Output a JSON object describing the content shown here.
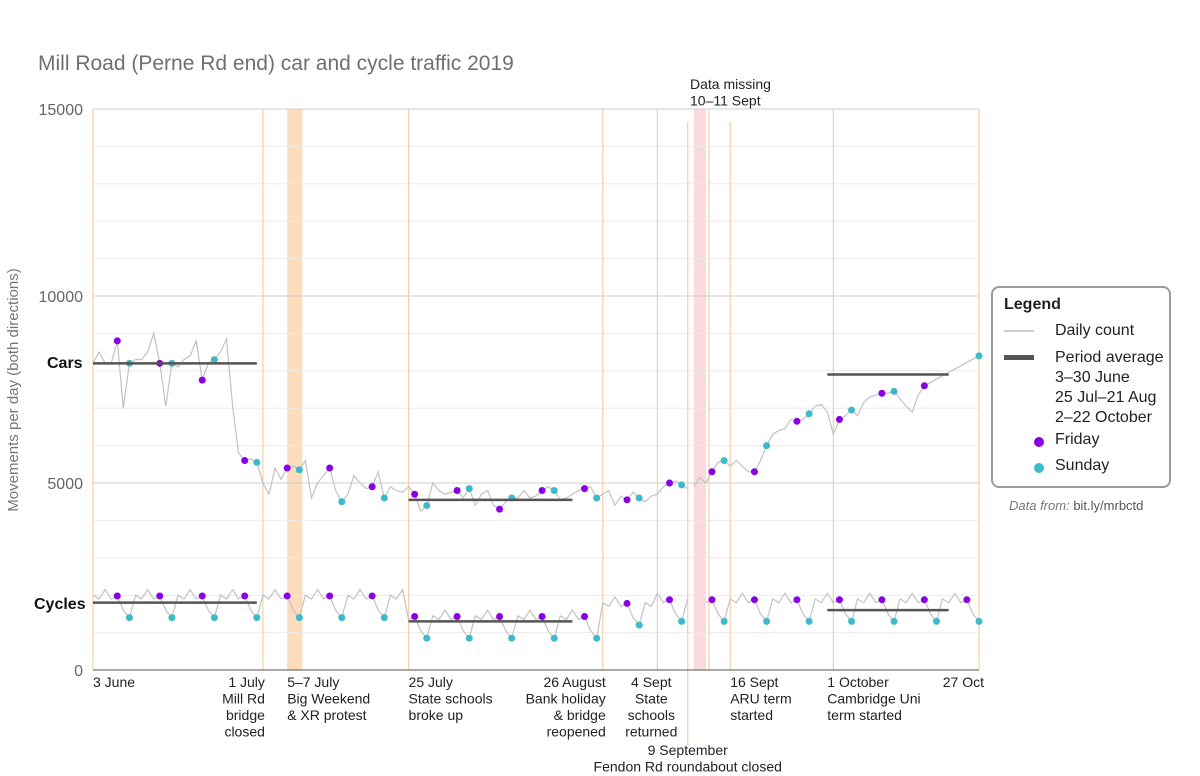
{
  "chart_data": {
    "type": "line",
    "title": "Mill Road (Perne Rd end) car and cycle traffic 2019",
    "ylabel": "Movements per day (both directions)",
    "ylim": [
      0,
      15000
    ],
    "y_ticks": [
      "0",
      "5000",
      "10000",
      "15000"
    ],
    "series_labels": [
      "Cars",
      "Cycles"
    ],
    "x_start": "3 June",
    "x_end": "27 Oct",
    "grid": true,
    "colors": {
      "daily": "#c2c2c2",
      "average": "#555555",
      "friday": "#8a00e6",
      "sunday": "#3dbac9",
      "event_line": "#f5cfa8",
      "big_weekend_band": "#fbdcbc",
      "missing_band": "#fadade",
      "grid": "#e4e4e4"
    },
    "series": [
      {
        "name": "Cars",
        "type": "daily_count",
        "day_offsets": [
          0,
          1,
          2,
          3,
          4,
          5,
          6,
          7,
          8,
          9,
          10,
          11,
          12,
          13,
          14,
          15,
          16,
          17,
          18,
          19,
          20,
          21,
          22,
          23,
          24,
          25,
          26,
          27,
          28,
          29,
          30,
          31,
          32,
          33,
          34,
          35,
          36,
          37,
          38,
          39,
          40,
          41,
          42,
          43,
          44,
          45,
          46,
          47,
          48,
          49,
          50,
          51,
          52,
          53,
          54,
          55,
          56,
          57,
          58,
          59,
          60,
          61,
          62,
          63,
          64,
          65,
          66,
          67,
          68,
          69,
          70,
          71,
          72,
          73,
          74,
          75,
          76,
          77,
          78,
          79,
          80,
          81,
          82,
          83,
          84,
          85,
          86,
          87,
          88,
          89,
          90,
          91,
          92,
          93,
          94,
          95,
          96,
          97,
          98,
          99,
          100,
          101,
          102,
          103,
          104,
          105,
          106,
          107,
          108,
          109,
          110,
          111,
          112,
          113,
          114,
          115,
          116,
          117,
          118,
          119,
          120,
          121,
          122,
          123,
          124,
          125,
          126,
          127,
          128,
          129,
          130,
          131,
          132,
          133,
          134,
          135,
          136,
          137,
          146
        ],
        "values": [
          8200,
          8500,
          8200,
          8200,
          8800,
          7000,
          8200,
          8300,
          8300,
          8500,
          9000,
          8200,
          7050,
          8200,
          8100,
          8300,
          8400,
          8800,
          7750,
          8200,
          8300,
          8500,
          8850,
          7050,
          5800,
          5600,
          5650,
          5550,
          5000,
          4700,
          5400,
          5100,
          5400,
          5450,
          5350,
          5600,
          4600,
          5000,
          5200,
          5400,
          4800,
          4500,
          4700,
          5200,
          5000,
          4850,
          4900,
          5300,
          4600,
          4900,
          4800,
          4750,
          4900,
          4700,
          4250,
          4400,
          5000,
          4800,
          4700,
          4750,
          4800,
          4600,
          4850,
          4400,
          4700,
          4800,
          4400,
          4300,
          4500,
          4600,
          4600,
          4800,
          4600,
          4650,
          4800,
          4900,
          4800,
          4550,
          4600,
          4700,
          4800,
          4850,
          4900,
          4600,
          4700,
          4800,
          4400,
          4650,
          4550,
          4750,
          4600,
          4500,
          4650,
          4700,
          4900,
          5000,
          5050,
          4950,
          4850,
          4900,
          5150,
          5000,
          5300,
          5550,
          5600,
          5450,
          5600,
          5450,
          5300,
          5300,
          5600,
          6000,
          6300,
          6400,
          6450,
          6700,
          6650,
          6700,
          6850,
          7050,
          7100,
          6900,
          6300,
          6700,
          6800,
          6950,
          6800,
          7150,
          7300,
          7350,
          7400,
          7400,
          7450,
          7250,
          7050,
          6900,
          7350,
          7600,
          8400
        ]
      },
      {
        "name": "Cars",
        "type": "period_average",
        "segments": [
          {
            "period": "3–30 June",
            "value": 8200
          },
          {
            "period": "25 Jul–21 Aug",
            "value": 4550
          },
          {
            "period": "2–22 October",
            "value": 7900
          }
        ]
      },
      {
        "name": "Cycles",
        "type": "daily_count",
        "values_summary": "approx. 1300–2500 per day; lower during school holidays (~1000–1600)"
      },
      {
        "name": "Cycles",
        "type": "period_average",
        "segments": [
          {
            "period": "3–30 June",
            "value": 1800
          },
          {
            "period": "25 Jul–21 Aug",
            "value": 1300
          },
          {
            "period": "2–22 October",
            "value": 1600
          }
        ]
      }
    ],
    "annotations": [
      {
        "lines": [
          "3 June"
        ],
        "align": "start"
      },
      {
        "lines": [
          "1 July",
          "Mill Rd",
          "bridge",
          "closed"
        ],
        "align": "end"
      },
      {
        "lines": [
          "5–7 July",
          "Big Weekend",
          "& XR protest"
        ],
        "align": "start"
      },
      {
        "lines": [
          "25 July",
          "State schools",
          "broke up"
        ],
        "align": "start"
      },
      {
        "lines": [
          "26 August",
          "Bank holiday",
          "& bridge",
          "reopened"
        ],
        "align": "end"
      },
      {
        "lines": [
          "4 Sept",
          "State",
          "schools",
          "returned"
        ],
        "align": "middle"
      },
      {
        "lines": [
          "9 September",
          "Fendon Rd roundabout closed"
        ],
        "align": "middle"
      },
      {
        "lines": [
          "16 Sept",
          "ARU term",
          "started"
        ],
        "align": "start"
      },
      {
        "lines": [
          "1 October",
          "Cambridge Uni",
          "term started"
        ],
        "align": "start"
      },
      {
        "lines": [
          "27 Oct"
        ],
        "align": "end"
      },
      {
        "lines": [
          "Data missing",
          "10–11 Sept"
        ],
        "align": "start"
      }
    ]
  },
  "legend": {
    "title": "Legend",
    "daily": "Daily count",
    "average": "Period average",
    "periods": [
      "3–30 June",
      "25 Jul–21 Aug",
      "2–22 October"
    ],
    "friday": "Friday",
    "sunday": "Sunday"
  },
  "source": {
    "label": "Data from:",
    "link": "bit.ly/mrbctd"
  }
}
